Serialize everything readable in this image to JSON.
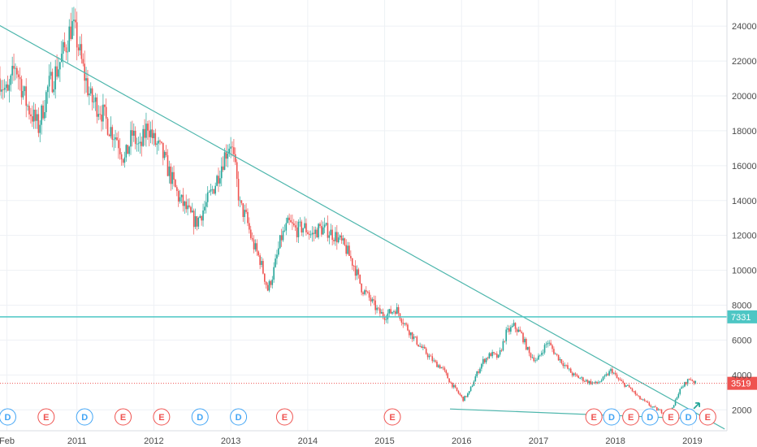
{
  "chart_data": {
    "type": "candlestick",
    "y_axis": {
      "position": "right",
      "ticks": [
        2000,
        4000,
        6000,
        8000,
        10000,
        12000,
        14000,
        16000,
        18000,
        20000,
        22000,
        24000
      ],
      "ylim": [
        800,
        25500
      ]
    },
    "x_axis": {
      "ticks": [
        "Feb",
        "2011",
        "2012",
        "2013",
        "2014",
        "2015",
        "2016",
        "2017",
        "2018",
        "2019"
      ],
      "tick_dates": [
        2010.09,
        2011.0,
        2012.0,
        2013.0,
        2014.0,
        2015.0,
        2016.0,
        2017.0,
        2018.0,
        2019.0
      ],
      "xlim": [
        2010.0,
        2019.45
      ]
    },
    "grid": true,
    "colors": {
      "up": "#26a69a",
      "down": "#ef5350",
      "line": "#4db6ac",
      "horizontal_level": "#4dc6c4",
      "last_price": "#ef5350",
      "grid": "#eef1f5",
      "axis_text": "#4a4a4a"
    },
    "price_path": [
      [
        2010.0,
        21000
      ],
      [
        2010.1,
        20000
      ],
      [
        2010.2,
        21800
      ],
      [
        2010.35,
        19500
      ],
      [
        2010.5,
        18200
      ],
      [
        2010.62,
        20400
      ],
      [
        2010.75,
        21600
      ],
      [
        2010.85,
        22800
      ],
      [
        2010.93,
        24100
      ],
      [
        2011.0,
        23200
      ],
      [
        2011.08,
        21500
      ],
      [
        2011.18,
        19800
      ],
      [
        2011.3,
        19300
      ],
      [
        2011.42,
        18200
      ],
      [
        2011.52,
        17600
      ],
      [
        2011.62,
        16300
      ],
      [
        2011.72,
        17800
      ],
      [
        2011.82,
        16900
      ],
      [
        2011.92,
        18400
      ],
      [
        2012.0,
        17400
      ],
      [
        2012.1,
        16800
      ],
      [
        2012.2,
        15600
      ],
      [
        2012.32,
        14200
      ],
      [
        2012.45,
        13300
      ],
      [
        2012.55,
        12700
      ],
      [
        2012.68,
        13800
      ],
      [
        2012.8,
        15000
      ],
      [
        2012.92,
        16600
      ],
      [
        2013.0,
        17400
      ],
      [
        2013.05,
        16000
      ],
      [
        2013.12,
        13700
      ],
      [
        2013.2,
        13000
      ],
      [
        2013.28,
        11600
      ],
      [
        2013.38,
        10600
      ],
      [
        2013.48,
        8900
      ],
      [
        2013.55,
        9800
      ],
      [
        2013.65,
        11800
      ],
      [
        2013.75,
        12700
      ],
      [
        2013.85,
        12300
      ],
      [
        2013.95,
        12500
      ],
      [
        2014.05,
        12000
      ],
      [
        2014.15,
        12400
      ],
      [
        2014.25,
        12300
      ],
      [
        2014.38,
        11900
      ],
      [
        2014.5,
        11200
      ],
      [
        2014.6,
        10300
      ],
      [
        2014.7,
        9000
      ],
      [
        2014.8,
        8400
      ],
      [
        2014.92,
        7600
      ],
      [
        2015.0,
        7400
      ],
      [
        2015.08,
        7600
      ],
      [
        2015.15,
        7800
      ],
      [
        2015.25,
        7000
      ],
      [
        2015.35,
        6300
      ],
      [
        2015.45,
        5700
      ],
      [
        2015.55,
        5200
      ],
      [
        2015.65,
        4700
      ],
      [
        2015.75,
        4400
      ],
      [
        2015.85,
        3600
      ],
      [
        2015.95,
        3000
      ],
      [
        2016.02,
        2600
      ],
      [
        2016.1,
        3000
      ],
      [
        2016.18,
        3900
      ],
      [
        2016.28,
        4800
      ],
      [
        2016.38,
        5200
      ],
      [
        2016.48,
        5000
      ],
      [
        2016.58,
        6400
      ],
      [
        2016.68,
        6800
      ],
      [
        2016.78,
        6300
      ],
      [
        2016.88,
        5200
      ],
      [
        2016.98,
        4800
      ],
      [
        2017.05,
        5400
      ],
      [
        2017.12,
        5900
      ],
      [
        2017.22,
        5200
      ],
      [
        2017.35,
        4500
      ],
      [
        2017.45,
        4000
      ],
      [
        2017.55,
        3800
      ],
      [
        2017.65,
        3600
      ],
      [
        2017.75,
        3500
      ],
      [
        2017.85,
        3800
      ],
      [
        2017.95,
        4300
      ],
      [
        2018.02,
        3800
      ],
      [
        2018.1,
        3500
      ],
      [
        2018.2,
        3200
      ],
      [
        2018.3,
        2700
      ],
      [
        2018.4,
        2400
      ],
      [
        2018.5,
        2100
      ],
      [
        2018.6,
        1900
      ],
      [
        2018.7,
        1750
      ],
      [
        2018.75,
        2100
      ],
      [
        2018.8,
        2800
      ],
      [
        2018.85,
        3200
      ],
      [
        2018.92,
        3600
      ],
      [
        2018.97,
        3800
      ],
      [
        2019.05,
        3500
      ]
    ],
    "trendlines": [
      {
        "from": [
          2009.85,
          24400
        ],
        "to": [
          2019.42,
          900
        ]
      },
      {
        "from": [
          2015.85,
          2050
        ],
        "to": [
          2018.98,
          1500
        ]
      }
    ],
    "horizontal_levels": [
      {
        "value": 7331,
        "label": "7331"
      }
    ],
    "last_price": {
      "value": 3519,
      "label": "3519"
    },
    "arrow_marker": {
      "x": 2019.05,
      "y": 2250
    },
    "events": [
      {
        "type": "D",
        "x": 2010.1
      },
      {
        "type": "E",
        "x": 2010.6
      },
      {
        "type": "D",
        "x": 2011.1
      },
      {
        "type": "E",
        "x": 2011.6
      },
      {
        "type": "E",
        "x": 2012.1
      },
      {
        "type": "D",
        "x": 2012.6
      },
      {
        "type": "D",
        "x": 2013.1
      },
      {
        "type": "E",
        "x": 2013.7
      },
      {
        "type": "E",
        "x": 2015.1
      },
      {
        "type": "E",
        "x": 2017.72
      },
      {
        "type": "D",
        "x": 2017.95
      },
      {
        "type": "E",
        "x": 2018.2
      },
      {
        "type": "D",
        "x": 2018.45
      },
      {
        "type": "E",
        "x": 2018.72
      },
      {
        "type": "D",
        "x": 2018.95
      },
      {
        "type": "E",
        "x": 2019.2
      }
    ]
  }
}
